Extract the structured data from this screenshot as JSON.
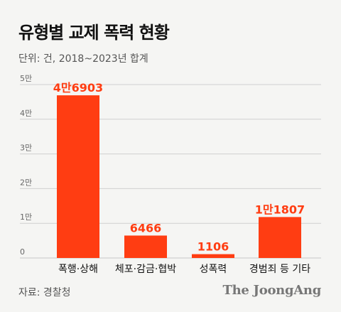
{
  "header": {
    "title": "유형별 교제 폭력 현황",
    "subtitle": "단위: 건, 2018~2023년 합계"
  },
  "footer": {
    "source": "자료: 경찰청",
    "logo_text": "The JoongAng"
  },
  "colors": {
    "bar": "#ff3d12",
    "label": "#ff3d12",
    "grid": "#d0d0d0",
    "axis_text": "#666666",
    "category_text": "#111111"
  },
  "chart_data": {
    "type": "bar",
    "title": "유형별 교제 폭력 현황",
    "subtitle": "단위: 건, 2018~2023년 합계",
    "xlabel": "",
    "ylabel": "",
    "categories": [
      "폭행·상해",
      "체포·감금·협박",
      "성폭력",
      "경범죄 등 기타"
    ],
    "values": [
      46903,
      6466,
      1106,
      11807
    ],
    "data_labels": [
      "4만6903",
      "6466",
      "1106",
      "1만1807"
    ],
    "ylim": [
      0,
      50000
    ],
    "yticks": [
      0,
      10000,
      20000,
      30000,
      40000,
      50000
    ],
    "ytick_labels": [
      "0",
      "1만",
      "2만",
      "3만",
      "4만",
      "5만"
    ],
    "grid": true,
    "legend": "none"
  }
}
